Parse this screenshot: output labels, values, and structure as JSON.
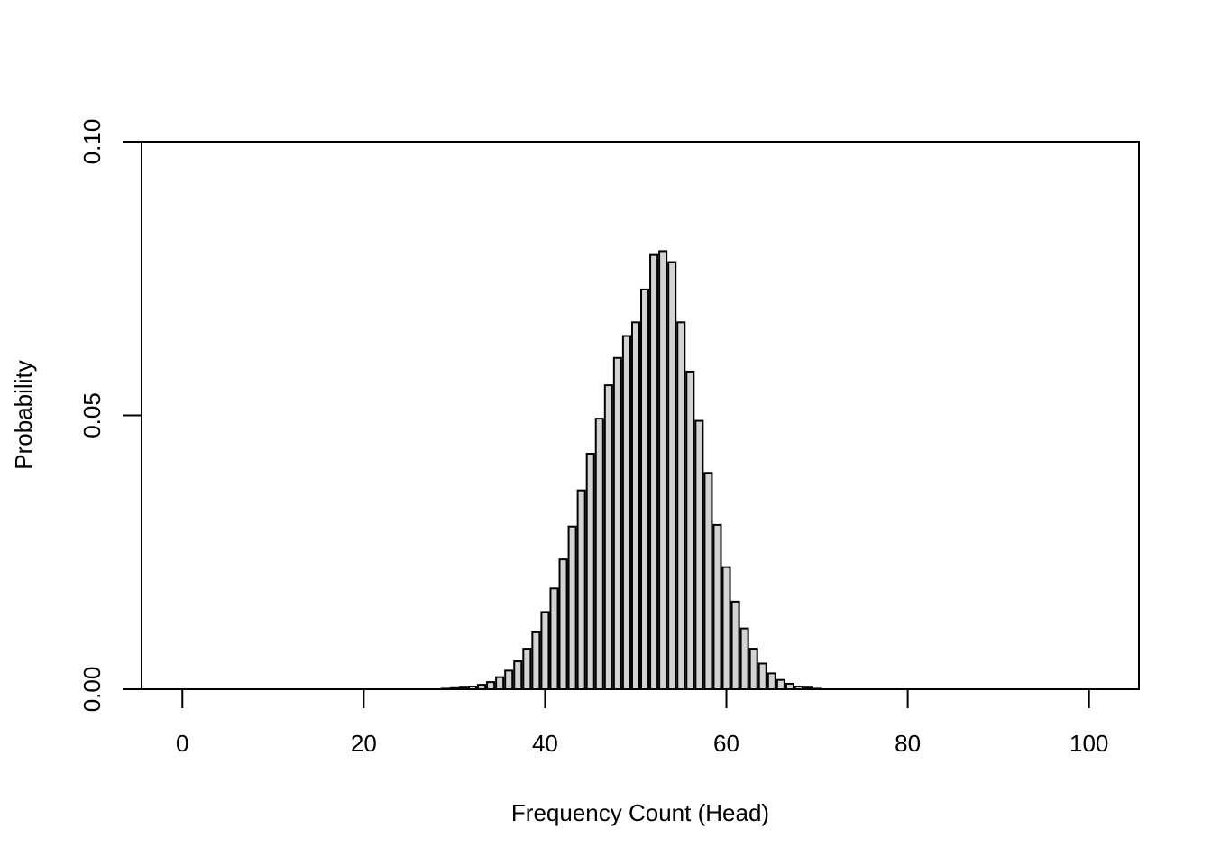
{
  "chart_data": {
    "type": "bar",
    "title": "",
    "xlabel": "Frequency Count (Head)",
    "ylabel": "Probability",
    "x_ticks": [
      "0",
      "20",
      "40",
      "60",
      "80",
      "100"
    ],
    "y_ticks": [
      "0.00",
      "0.05",
      "0.10"
    ],
    "xlim": [
      -4.5,
      105.5
    ],
    "ylim": [
      0,
      0.1
    ],
    "bar_fill": "#d3d3d3",
    "bar_stroke": "#000000",
    "categories": [
      0,
      1,
      2,
      3,
      4,
      5,
      6,
      7,
      8,
      9,
      10,
      11,
      12,
      13,
      14,
      15,
      16,
      17,
      18,
      19,
      20,
      21,
      22,
      23,
      24,
      25,
      26,
      27,
      28,
      29,
      30,
      31,
      32,
      33,
      34,
      35,
      36,
      37,
      38,
      39,
      40,
      41,
      42,
      43,
      44,
      45,
      46,
      47,
      48,
      49,
      50,
      51,
      52,
      53,
      54,
      55,
      56,
      57,
      58,
      59,
      60,
      61,
      62,
      63,
      64,
      65,
      66,
      67,
      68,
      69,
      70,
      71,
      72,
      73,
      74,
      75,
      76,
      77,
      78,
      79,
      80,
      81,
      82,
      83,
      84,
      85,
      86,
      87,
      88,
      89,
      90,
      91,
      92,
      93,
      94,
      95,
      96,
      97,
      98,
      99,
      100
    ],
    "values": [
      0,
      0,
      0,
      0,
      0,
      0,
      0,
      0,
      0,
      0,
      0,
      0,
      0,
      0,
      0,
      0,
      0,
      0,
      0,
      0,
      0,
      0,
      0,
      0,
      0,
      0,
      0,
      0,
      0,
      0.0001,
      0.0002,
      0.0003,
      0.0005,
      0.0008,
      0.0013,
      0.0022,
      0.0034,
      0.0051,
      0.0074,
      0.0104,
      0.0141,
      0.0184,
      0.0237,
      0.0297,
      0.0363,
      0.043,
      0.0494,
      0.0555,
      0.0605,
      0.0645,
      0.067,
      0.073,
      0.0793,
      0.08,
      0.078,
      0.067,
      0.058,
      0.049,
      0.0395,
      0.03,
      0.0223,
      0.016,
      0.0111,
      0.0074,
      0.0047,
      0.0029,
      0.0017,
      0.001,
      0.0005,
      0.0003,
      0.0001,
      0,
      0,
      0,
      0,
      0,
      0,
      0,
      0,
      0,
      0,
      0,
      0,
      0,
      0,
      0,
      0,
      0,
      0,
      0,
      0,
      0,
      0,
      0,
      0,
      0,
      0,
      0,
      0,
      0,
      0
    ]
  }
}
